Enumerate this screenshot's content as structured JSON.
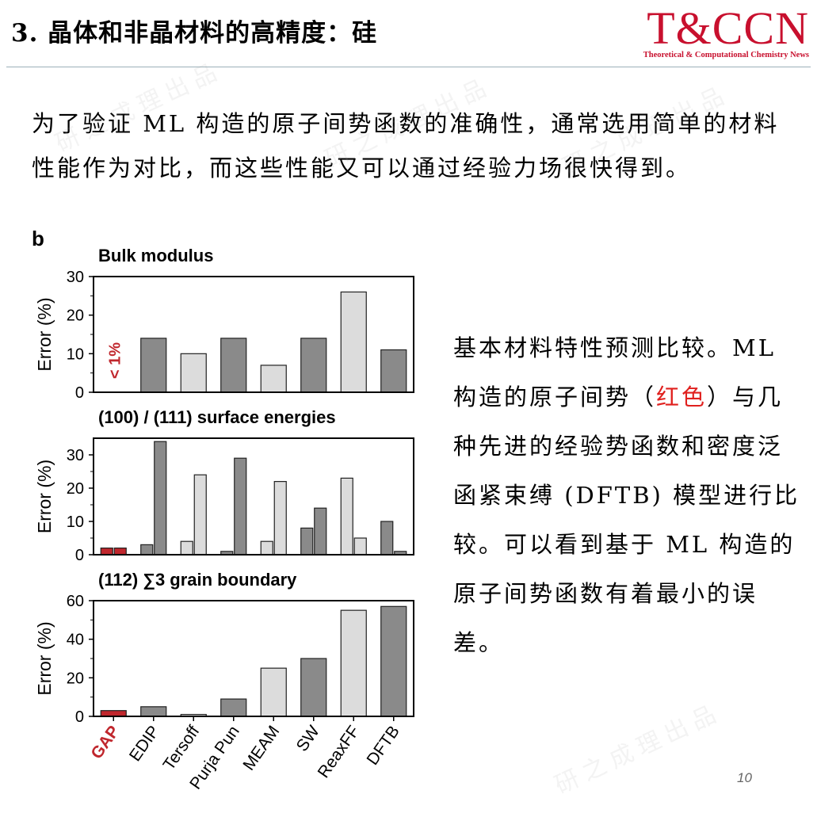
{
  "header": {
    "title": "3. 晶体和非晶材料的高精度：硅",
    "logo_main": "T&CCN",
    "logo_sub": "Theoretical & Computational Chemistry News"
  },
  "intro_text": "为了验证 ML 构造的原子间势函数的准确性，通常选用简单的材料性能作为对比，而这些性能又可以通过经验力场很快得到。",
  "description": {
    "part1": "基本材料特性预测比较。ML 构造的原子间势（",
    "highlight": "红色",
    "part2": "）与几种先进的经验势函数和密度泛函紧束缚 (DFTB) 模型进行比较。可以看到基于 ML 构造的原子间势函数有着最小的误差。"
  },
  "watermark": "研之成理出品",
  "page_number": "10",
  "colors": {
    "gap": "#c0272d",
    "dark": "#8a8a8a",
    "light": "#dcdcdc",
    "accent": "#c8102e"
  },
  "chart_data": {
    "panel_label": "b",
    "categories": [
      "GAP",
      "EDIP",
      "Tersoff",
      "Purja Pun",
      "MEAM",
      "SW",
      "ReaxFF",
      "DFTB"
    ],
    "panels": [
      {
        "type": "bar",
        "title": "Bulk modulus",
        "ylabel": "Error (%)",
        "ylim": [
          0,
          30
        ],
        "yticks": [
          0,
          10,
          20,
          30
        ],
        "annotation": "< 1%",
        "values": [
          null,
          14,
          10,
          14,
          7,
          14,
          26,
          11
        ]
      },
      {
        "type": "bar",
        "title": "(100) / (111) surface energies",
        "ylabel": "Error (%)",
        "ylim": [
          0,
          35
        ],
        "yticks": [
          0,
          10,
          20,
          30
        ],
        "series": [
          {
            "name": "(100)",
            "values": [
              2,
              3,
              4,
              1,
              4,
              8,
              23,
              10
            ]
          },
          {
            "name": "(111)",
            "values": [
              2,
              34,
              24,
              29,
              22,
              14,
              5,
              1
            ]
          }
        ]
      },
      {
        "type": "bar",
        "title": "(112) ∑3 grain boundary",
        "ylabel": "Error (%)",
        "ylim": [
          0,
          60
        ],
        "yticks": [
          0,
          20,
          40,
          60
        ],
        "values": [
          3,
          5,
          1,
          9,
          25,
          30,
          55,
          57
        ]
      }
    ]
  }
}
